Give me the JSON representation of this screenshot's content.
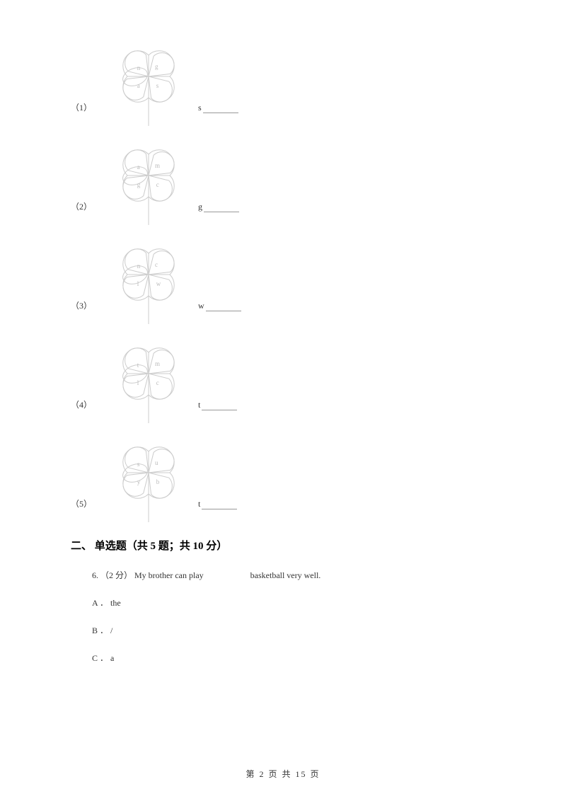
{
  "pinwheel_items": [
    {
      "num": "（1）",
      "prompt": "s",
      "petals": {
        "tl": "n",
        "tr": "g",
        "br": "s",
        "bl": "a"
      }
    },
    {
      "num": "（2）",
      "prompt": "g",
      "petals": {
        "tl": "a",
        "tr": "m",
        "br": "c",
        "bl": "g"
      }
    },
    {
      "num": "（3）",
      "prompt": "w",
      "petals": {
        "tl": "n",
        "tr": "c",
        "br": "w",
        "bl": "l"
      }
    },
    {
      "num": "（4）",
      "prompt": "t",
      "petals": {
        "tl": "t",
        "tr": "m",
        "br": "c",
        "bl": "l"
      }
    },
    {
      "num": "（5）",
      "prompt": "t",
      "petals": {
        "tl": "s",
        "tr": "u",
        "br": "b",
        "bl": "y"
      }
    }
  ],
  "section2": {
    "title": "二、 单选题（共 5 题；共 10 分）",
    "question": {
      "number": "6.",
      "points": "（2 分）",
      "stem_before": "My brother can play",
      "stem_after": "basketball very well.",
      "options": [
        {
          "letter": "A ．",
          "text": "the"
        },
        {
          "letter": "B ．",
          "text": "/"
        },
        {
          "letter": "C ．",
          "text": "a"
        }
      ]
    }
  },
  "footer": "第 2 页 共 15 页",
  "style": {
    "petal_stroke": "#cccccc",
    "petal_label_fill": "#bbbbbb",
    "blank_line_border": "#999999"
  }
}
